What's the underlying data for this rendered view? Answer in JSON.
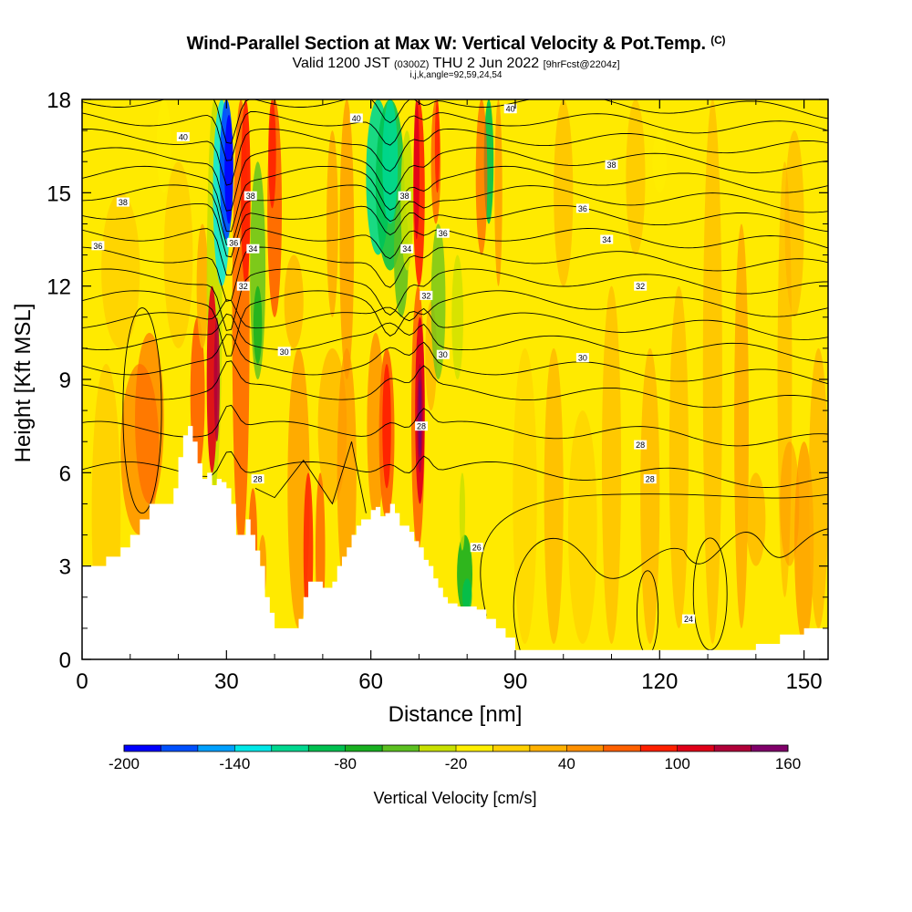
{
  "title": {
    "main": "Wind-Parallel Section at Max W: Vertical Velocity & Pot.Temp.",
    "main_suffix": "(C)",
    "valid_prefix": "Valid 1200 JST",
    "valid_utc": "(0300Z)",
    "valid_date": "THU 2 Jun 2022",
    "fcst": "[9hrFcst@2204z]",
    "indices": "i,j,k,angle=92,59,24,54"
  },
  "chart_data": {
    "type": "heatmap",
    "xlabel": "Distance [nm]",
    "ylabel": "Height [Kft MSL]",
    "xlim": [
      0,
      155
    ],
    "ylim": [
      0,
      18
    ],
    "xticks": [
      0,
      30,
      60,
      90,
      120,
      150
    ],
    "yticks": [
      0,
      3,
      6,
      9,
      12,
      15,
      18
    ],
    "terrain": [
      [
        0,
        3
      ],
      [
        2,
        3
      ],
      [
        5,
        3.3
      ],
      [
        8,
        3.6
      ],
      [
        10,
        4
      ],
      [
        12,
        4.5
      ],
      [
        14,
        5
      ],
      [
        16,
        5
      ],
      [
        18,
        5
      ],
      [
        19,
        5.5
      ],
      [
        20,
        6.5
      ],
      [
        21,
        7.2
      ],
      [
        22,
        7.5
      ],
      [
        23,
        7
      ],
      [
        24,
        6.3
      ],
      [
        25,
        5.8
      ],
      [
        26,
        6
      ],
      [
        27,
        5.6
      ],
      [
        28,
        5.8
      ],
      [
        29,
        5.7
      ],
      [
        30,
        5.5
      ],
      [
        31,
        5
      ],
      [
        32,
        4
      ],
      [
        33,
        4
      ],
      [
        34,
        4.5
      ],
      [
        35,
        4
      ],
      [
        36,
        3.5
      ],
      [
        37,
        3
      ],
      [
        38,
        2
      ],
      [
        39,
        1.5
      ],
      [
        40,
        1
      ],
      [
        41,
        1
      ],
      [
        42,
        1
      ],
      [
        43,
        1
      ],
      [
        44,
        1
      ],
      [
        45,
        1.3
      ],
      [
        46,
        2
      ],
      [
        47,
        2.5
      ],
      [
        48,
        2.5
      ],
      [
        49,
        2.5
      ],
      [
        50,
        2.3
      ],
      [
        51,
        2.3
      ],
      [
        52,
        2.5
      ],
      [
        53,
        3
      ],
      [
        54,
        3.3
      ],
      [
        55,
        3.6
      ],
      [
        56,
        4
      ],
      [
        57,
        4.3
      ],
      [
        58,
        4.5
      ],
      [
        59,
        4.5
      ],
      [
        60,
        4.8
      ],
      [
        61,
        4.9
      ],
      [
        62,
        4.6
      ],
      [
        63,
        4.7
      ],
      [
        64,
        5
      ],
      [
        65,
        4.7
      ],
      [
        66,
        4.3
      ],
      [
        67,
        4.3
      ],
      [
        68,
        4.1
      ],
      [
        69,
        3.8
      ],
      [
        70,
        3.6
      ],
      [
        71,
        3.2
      ],
      [
        72,
        3
      ],
      [
        73,
        2.6
      ],
      [
        74,
        2.3
      ],
      [
        75,
        2
      ],
      [
        76,
        1.8
      ],
      [
        78,
        1.7
      ],
      [
        79,
        1.7
      ],
      [
        80,
        1.7
      ],
      [
        82,
        1.6
      ],
      [
        84,
        1.3
      ],
      [
        86,
        1
      ],
      [
        88,
        0.7
      ],
      [
        90,
        0.3
      ],
      [
        120,
        0.3
      ],
      [
        135,
        0.3
      ],
      [
        140,
        0.5
      ],
      [
        145,
        0.8
      ],
      [
        150,
        1
      ],
      [
        155,
        1
      ]
    ],
    "colorbar": {
      "label": "Vertical Velocity [cm/s]",
      "ticks": [
        -200,
        -140,
        -80,
        -20,
        40,
        100,
        160
      ],
      "levels": [
        -200,
        -180,
        -160,
        -140,
        -120,
        -100,
        -80,
        -60,
        -40,
        -20,
        0,
        20,
        40,
        60,
        80,
        100,
        120,
        140,
        160
      ],
      "colors": [
        "#0000ff",
        "#0050ff",
        "#00a0ff",
        "#00e8e8",
        "#00d890",
        "#00c050",
        "#18b020",
        "#5cc020",
        "#c8e000",
        "#ffef00",
        "#ffd000",
        "#ffb000",
        "#ff9000",
        "#ff6000",
        "#ff2000",
        "#e00018",
        "#b00038",
        "#80006a",
        "#5a0090"
      ]
    },
    "theta_contours": {
      "unit": "C",
      "labels": [
        {
          "text": "40",
          "x": 21,
          "y": 16.8
        },
        {
          "text": "40",
          "x": 57,
          "y": 17.4
        },
        {
          "text": "40",
          "x": 89,
          "y": 17.7
        },
        {
          "text": "38",
          "x": 8.5,
          "y": 14.7
        },
        {
          "text": "38",
          "x": 35,
          "y": 14.9
        },
        {
          "text": "38",
          "x": 67,
          "y": 14.9
        },
        {
          "text": "38",
          "x": 110,
          "y": 15.9
        },
        {
          "text": "36",
          "x": 3.3,
          "y": 13.3
        },
        {
          "text": "36",
          "x": 31.5,
          "y": 13.4
        },
        {
          "text": "36",
          "x": 75,
          "y": 13.7
        },
        {
          "text": "36",
          "x": 104,
          "y": 14.5
        },
        {
          "text": "34",
          "x": 35.5,
          "y": 13.2
        },
        {
          "text": "34",
          "x": 67.5,
          "y": 13.2
        },
        {
          "text": "34",
          "x": 109,
          "y": 13.5
        },
        {
          "text": "32",
          "x": 33.5,
          "y": 12
        },
        {
          "text": "32",
          "x": 71.5,
          "y": 11.7
        },
        {
          "text": "32",
          "x": 116,
          "y": 12
        },
        {
          "text": "30",
          "x": 42,
          "y": 9.9
        },
        {
          "text": "30",
          "x": 75,
          "y": 9.8
        },
        {
          "text": "30",
          "x": 104,
          "y": 9.7
        },
        {
          "text": "28",
          "x": 36.5,
          "y": 5.8
        },
        {
          "text": "28",
          "x": 70.5,
          "y": 7.5
        },
        {
          "text": "28",
          "x": 116,
          "y": 6.9
        },
        {
          "text": "28",
          "x": 118,
          "y": 5.8
        },
        {
          "text": "26",
          "x": 82,
          "y": 3.6
        },
        {
          "text": "24",
          "x": 126,
          "y": 1.3
        }
      ]
    }
  }
}
